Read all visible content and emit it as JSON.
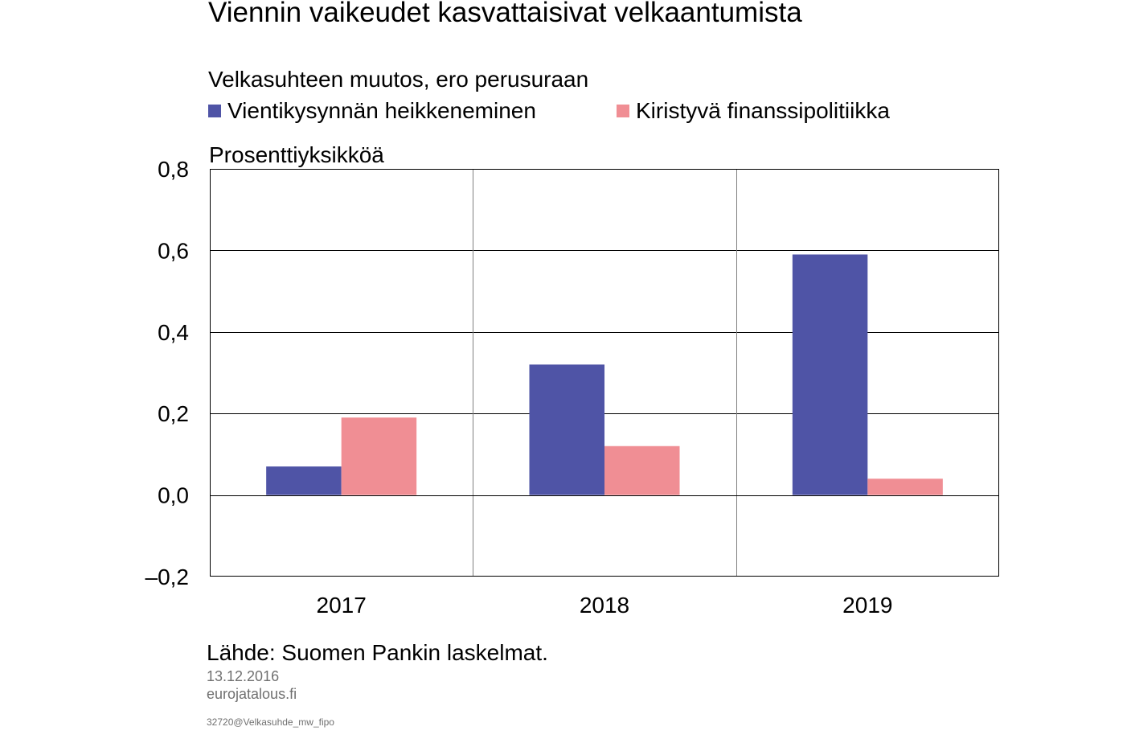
{
  "title": "Viennin vaikeudet kasvattaisivat velkaantumista",
  "subtitle": "Velkasuhteen muutos, ero perusuraan",
  "unit": "Prosenttiyksikköä",
  "source": "Lähde: Suomen Pankin laskelmat.",
  "date": "13.12.2016",
  "site": "eurojatalous.fi",
  "code": "32720@Velkasuhde_mw_fipo",
  "chart_data": {
    "type": "bar",
    "categories": [
      "2017",
      "2018",
      "2019"
    ],
    "series": [
      {
        "name": "Vientikysynnän heikkeneminen",
        "values": [
          0.07,
          0.32,
          0.59
        ],
        "color": "#4f54a6"
      },
      {
        "name": "Kiristyvä finanssipolitiikka",
        "values": [
          0.19,
          0.12,
          0.04
        ],
        "color": "#f08e94"
      }
    ],
    "ylim": [
      -0.2,
      0.8
    ],
    "yticks": [
      -0.2,
      0.0,
      0.2,
      0.4,
      0.6,
      0.8
    ],
    "ytick_labels": [
      "–0,2",
      "0,0",
      "0,2",
      "0,4",
      "0,6",
      "0,8"
    ],
    "grid": true,
    "legend_position": "top-left",
    "xlabel": "",
    "ylabel": ""
  }
}
